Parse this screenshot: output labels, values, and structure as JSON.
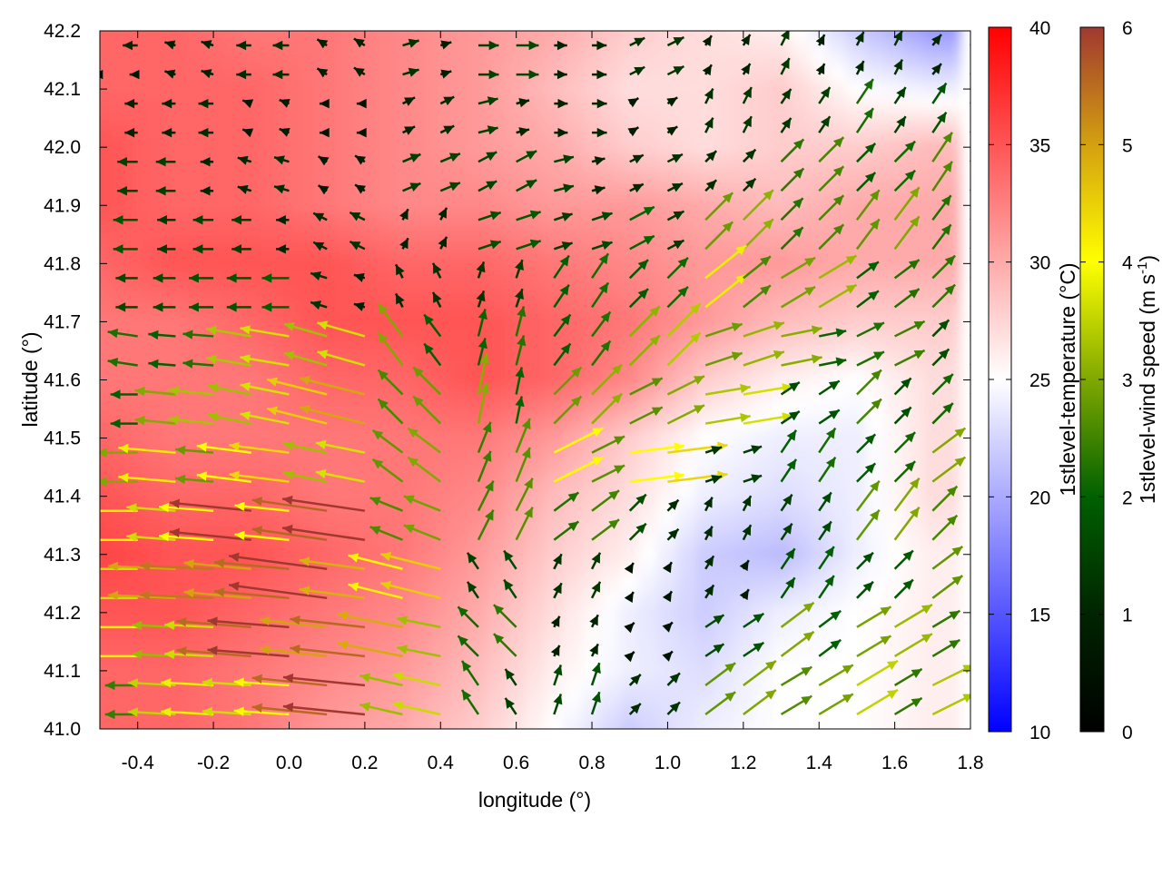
{
  "chart_data": {
    "type": "heatmap",
    "title": "",
    "xlabel": "longitude (°)",
    "ylabel": "latitude (°)",
    "xlim": [
      -0.5,
      1.8
    ],
    "ylim": [
      41.0,
      42.2
    ],
    "xticks": [
      "-0.4",
      "-0.2",
      "0.0",
      "0.2",
      "0.4",
      "0.6",
      "0.8",
      "1.0",
      "1.2",
      "1.4",
      "1.6",
      "1.8"
    ],
    "xtick_values": [
      -0.4,
      -0.2,
      0.0,
      0.2,
      0.4,
      0.6,
      0.8,
      1.0,
      1.2,
      1.4,
      1.6,
      1.8
    ],
    "yticks": [
      "41.0",
      "41.1",
      "41.2",
      "41.3",
      "41.4",
      "41.5",
      "41.6",
      "41.7",
      "41.8",
      "41.9",
      "42.0",
      "42.1",
      "42.2"
    ],
    "ytick_values": [
      41.0,
      41.1,
      41.2,
      41.3,
      41.4,
      41.5,
      41.6,
      41.7,
      41.8,
      41.9,
      42.0,
      42.1,
      42.2
    ],
    "temperature": {
      "label": "1stlevel-temperature (°C)",
      "range": [
        10,
        40
      ],
      "ticks": [
        "10",
        "15",
        "20",
        "25",
        "30",
        "35",
        "40"
      ],
      "tick_values": [
        10,
        15,
        20,
        25,
        30,
        35,
        40
      ],
      "colors": {
        "low": "#0000ff",
        "mid": "#ffffff",
        "high": "#ff0000"
      },
      "lon": [
        -0.5,
        -0.3,
        -0.1,
        0.1,
        0.3,
        0.5,
        0.7,
        0.9,
        1.1,
        1.3,
        1.5,
        1.7
      ],
      "lat": [
        42.2,
        42.1,
        42.0,
        41.9,
        41.8,
        41.7,
        41.6,
        41.5,
        41.4,
        41.3,
        41.2,
        41.1,
        41.0
      ],
      "values": [
        [
          34,
          34,
          33,
          33,
          32,
          31,
          30,
          28,
          27,
          26,
          22,
          19
        ],
        [
          34,
          34,
          34,
          33,
          32,
          31,
          29,
          27,
          27,
          28,
          25,
          24
        ],
        [
          35,
          34,
          34,
          33,
          32,
          31,
          30,
          28,
          27,
          28,
          28,
          29
        ],
        [
          35,
          34,
          34,
          33,
          32,
          32,
          31,
          31,
          30,
          29,
          30,
          30
        ],
        [
          34,
          35,
          35,
          35,
          34,
          34,
          33,
          32,
          31,
          31,
          30,
          30
        ],
        [
          33,
          33,
          34,
          35,
          35,
          35,
          34,
          33,
          31,
          29,
          28,
          28
        ],
        [
          33,
          33,
          33,
          34,
          34,
          35,
          34,
          32,
          28,
          26,
          25,
          27
        ],
        [
          34,
          33,
          33,
          33,
          33,
          33,
          31,
          28,
          25,
          24,
          24,
          27
        ],
        [
          35,
          34,
          34,
          33,
          33,
          32,
          29,
          27,
          24,
          23,
          24,
          27
        ],
        [
          36,
          35,
          35,
          34,
          33,
          31,
          28,
          26,
          22,
          21,
          24,
          26
        ],
        [
          35,
          35,
          34,
          33,
          32,
          30,
          27,
          24,
          22,
          24,
          25,
          26
        ],
        [
          34,
          34,
          33,
          32,
          31,
          29,
          26,
          24,
          23,
          25,
          25,
          26
        ],
        [
          34,
          34,
          33,
          31,
          30,
          28,
          25,
          22,
          24,
          25,
          25,
          26
        ]
      ]
    },
    "wind": {
      "label_prefix": "1stlevel-wind speed (m s",
      "label_sup": "-1",
      "label_suffix": ")",
      "range": [
        0,
        6
      ],
      "ticks": [
        "0",
        "1",
        "2",
        "3",
        "4",
        "5",
        "6"
      ],
      "tick_values": [
        0,
        1,
        2,
        3,
        4,
        5,
        6
      ],
      "colors": [
        "#000000",
        "#002400",
        "#006000",
        "#80a800",
        "#ffff00",
        "#d4a010",
        "#a03830"
      ],
      "lon": [
        -0.45,
        -0.25,
        -0.05,
        0.15,
        0.35,
        0.55,
        0.75,
        0.95,
        1.15,
        1.35,
        1.55,
        1.75
      ],
      "lat": [
        42.15,
        42.05,
        41.95,
        41.85,
        41.75,
        41.65,
        41.55,
        41.45,
        41.35,
        41.25,
        41.15,
        41.05
      ],
      "uv": [
        [
          [
            -1,
            0
          ],
          [
            -1,
            0.3
          ],
          [
            -1,
            0
          ],
          [
            -0.8,
            0.5
          ],
          [
            1,
            0.3
          ],
          [
            1.5,
            0
          ],
          [
            1.2,
            0
          ],
          [
            1,
            0.5
          ],
          [
            0.5,
            0.8
          ],
          [
            0.5,
            1
          ],
          [
            0.5,
            1
          ],
          [
            0.8,
            1
          ]
        ],
        [
          [
            -1.2,
            0
          ],
          [
            -1,
            0
          ],
          [
            -0.8,
            0.3
          ],
          [
            -0.5,
            0
          ],
          [
            1,
            0.5
          ],
          [
            1.2,
            0.3
          ],
          [
            1,
            0
          ],
          [
            0.8,
            0.5
          ],
          [
            0.5,
            1
          ],
          [
            0.8,
            1.2
          ],
          [
            1,
            1.5
          ],
          [
            1,
            1.5
          ]
        ],
        [
          [
            -1.5,
            0
          ],
          [
            -1.2,
            0
          ],
          [
            -1,
            0.3
          ],
          [
            -0.8,
            0.5
          ],
          [
            1.2,
            0.5
          ],
          [
            1.5,
            0.8
          ],
          [
            1.2,
            0.3
          ],
          [
            1,
            0.5
          ],
          [
            1,
            1
          ],
          [
            1.5,
            1.5
          ],
          [
            1.5,
            1.5
          ],
          [
            1.2,
            1.8
          ]
        ],
        [
          [
            -1.5,
            0
          ],
          [
            -1.5,
            0
          ],
          [
            -1.2,
            0
          ],
          [
            -1,
            0.5
          ],
          [
            0.5,
            1
          ],
          [
            1.5,
            0.5
          ],
          [
            1.5,
            0.5
          ],
          [
            1.5,
            0.8
          ],
          [
            2,
            2
          ],
          [
            2,
            2
          ],
          [
            1.5,
            2
          ],
          [
            1.5,
            2
          ]
        ],
        [
          [
            -1.8,
            0
          ],
          [
            -1.5,
            0
          ],
          [
            -2,
            0
          ],
          [
            -1,
            0.3
          ],
          [
            -0.5,
            1
          ],
          [
            0.5,
            1.5
          ],
          [
            1,
            1.5
          ],
          [
            1.5,
            1.5
          ],
          [
            2.5,
            2
          ],
          [
            2.5,
            1.5
          ],
          [
            2,
            1.5
          ],
          [
            1.5,
            1.5
          ]
        ],
        [
          [
            -2,
            0.3
          ],
          [
            -2.5,
            0.2
          ],
          [
            -3,
            0.5
          ],
          [
            -3.5,
            1
          ],
          [
            -1.5,
            2
          ],
          [
            0.5,
            2
          ],
          [
            1.5,
            2
          ],
          [
            2,
            2
          ],
          [
            3,
            1
          ],
          [
            2.5,
            0.5
          ],
          [
            2,
            1
          ],
          [
            1.5,
            1.5
          ]
        ],
        [
          [
            -2.5,
            0
          ],
          [
            -3,
            0.3
          ],
          [
            -4,
            0.8
          ],
          [
            -4,
            1
          ],
          [
            -2,
            2
          ],
          [
            0.5,
            2.5
          ],
          [
            2,
            2
          ],
          [
            3,
            1.5
          ],
          [
            3,
            0.5
          ],
          [
            1.5,
            1
          ],
          [
            1.5,
            1.5
          ],
          [
            1.5,
            1.5
          ]
        ],
        [
          [
            -3,
            0
          ],
          [
            -3.5,
            0.3
          ],
          [
            -4,
            0.5
          ],
          [
            -4,
            0.8
          ],
          [
            -2,
            1.5
          ],
          [
            1,
            2.5
          ],
          [
            3,
            1.5
          ],
          [
            4,
            0.5
          ],
          [
            1.5,
            0.5
          ],
          [
            1,
            1.5
          ],
          [
            1.5,
            1.5
          ],
          [
            2,
            1.5
          ]
        ],
        [
          [
            -3.5,
            0
          ],
          [
            -4,
            0.3
          ],
          [
            -5,
            0.5
          ],
          [
            -5.5,
            0.8
          ],
          [
            -3,
            1.2
          ],
          [
            1,
            2
          ],
          [
            2,
            1.5
          ],
          [
            1,
            1
          ],
          [
            0.5,
            1
          ],
          [
            1,
            1.5
          ],
          [
            1.5,
            2
          ],
          [
            2,
            2
          ]
        ],
        [
          [
            -4,
            0
          ],
          [
            -4.5,
            0.2
          ],
          [
            -5.5,
            0.5
          ],
          [
            -6,
            0.8
          ],
          [
            -4,
            1
          ],
          [
            -1,
            1.5
          ],
          [
            0.5,
            1
          ],
          [
            0.3,
            0.5
          ],
          [
            0.5,
            0.8
          ],
          [
            1,
            1.5
          ],
          [
            1.5,
            1.5
          ],
          [
            2,
            1.5
          ]
        ],
        [
          [
            -3.5,
            0
          ],
          [
            -4,
            0.2
          ],
          [
            -5,
            0.4
          ],
          [
            -5.5,
            0.6
          ],
          [
            -4,
            0.8
          ],
          [
            -1.5,
            1.5
          ],
          [
            0.5,
            1
          ],
          [
            0.3,
            0.3
          ],
          [
            1.5,
            1
          ],
          [
            2,
            1.5
          ],
          [
            2.5,
            1.5
          ],
          [
            2.5,
            1.5
          ]
        ],
        [
          [
            -3,
            0
          ],
          [
            -3.5,
            0.2
          ],
          [
            -4.5,
            0.3
          ],
          [
            -5,
            0.5
          ],
          [
            -3.5,
            0.8
          ],
          [
            -1,
            1.5
          ],
          [
            0.5,
            1.5
          ],
          [
            1,
            1
          ],
          [
            2,
            1.5
          ],
          [
            2.5,
            1.5
          ],
          [
            2.5,
            1.5
          ],
          [
            3,
            1.5
          ]
        ]
      ]
    }
  }
}
